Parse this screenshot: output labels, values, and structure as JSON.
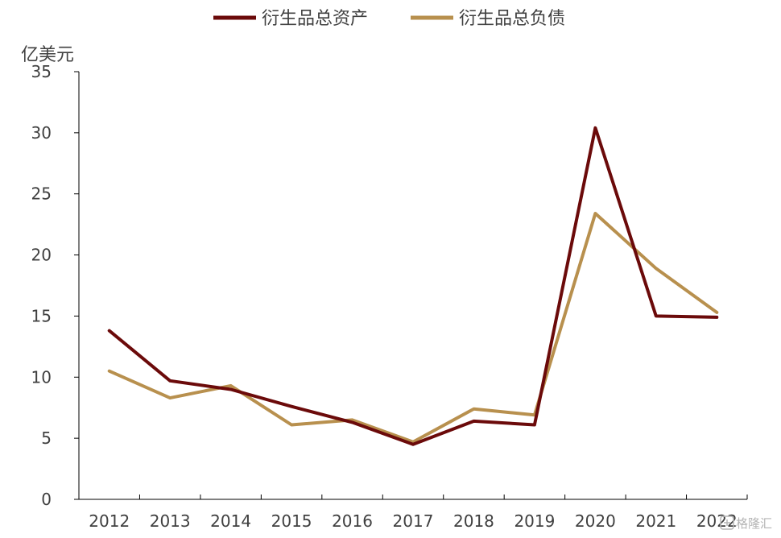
{
  "chart_data": {
    "type": "line",
    "ylabel": "亿美元",
    "categories": [
      "2012",
      "2013",
      "2014",
      "2015",
      "2016",
      "2017",
      "2018",
      "2019",
      "2020",
      "2021",
      "2022"
    ],
    "ylim": [
      0,
      35
    ],
    "yticks": [
      0,
      5,
      10,
      15,
      20,
      25,
      30,
      35
    ],
    "legend_position": "top-center",
    "grid": false,
    "series": [
      {
        "name": "衍生品总资产",
        "color": "#6b0a0a",
        "values": [
          13.8,
          9.7,
          9.0,
          7.6,
          6.3,
          4.5,
          6.4,
          6.1,
          30.4,
          15.0,
          14.9
        ]
      },
      {
        "name": "衍生品总负债",
        "color": "#b8904e",
        "values": [
          10.5,
          8.3,
          9.3,
          6.1,
          6.5,
          4.7,
          7.4,
          6.9,
          23.4,
          18.9,
          15.3
        ]
      }
    ]
  },
  "watermark": "格隆汇",
  "watermark_icon": "gelonghui-logo-icon"
}
